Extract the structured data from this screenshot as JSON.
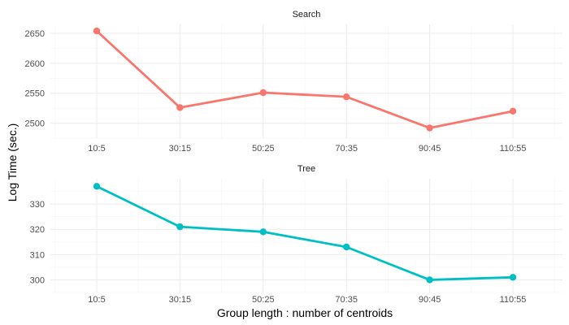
{
  "chart_data": {
    "type": "line",
    "xlabel": "Group length : number of centroids",
    "ylabel": "Log Time (sec.)",
    "categories": [
      "10:5",
      "30:15",
      "50:25",
      "70:35",
      "90:45",
      "110:55"
    ],
    "grid": true,
    "legend": "none",
    "panels": [
      {
        "title": "Search",
        "color": "#F8766D",
        "ylim": [
          2475,
          2665
        ],
        "yticks": [
          2500,
          2550,
          2600,
          2650
        ],
        "series": [
          {
            "values": [
              2654,
              2526,
              2551,
              2544,
              2492,
              2520
            ]
          }
        ]
      },
      {
        "title": "Tree",
        "color": "#00BFC4",
        "ylim": [
          295,
          340
        ],
        "yticks": [
          300,
          310,
          320,
          330
        ],
        "series": [
          {
            "values": [
              337,
              321,
              319,
              313,
              300,
              301
            ]
          }
        ]
      }
    ]
  }
}
